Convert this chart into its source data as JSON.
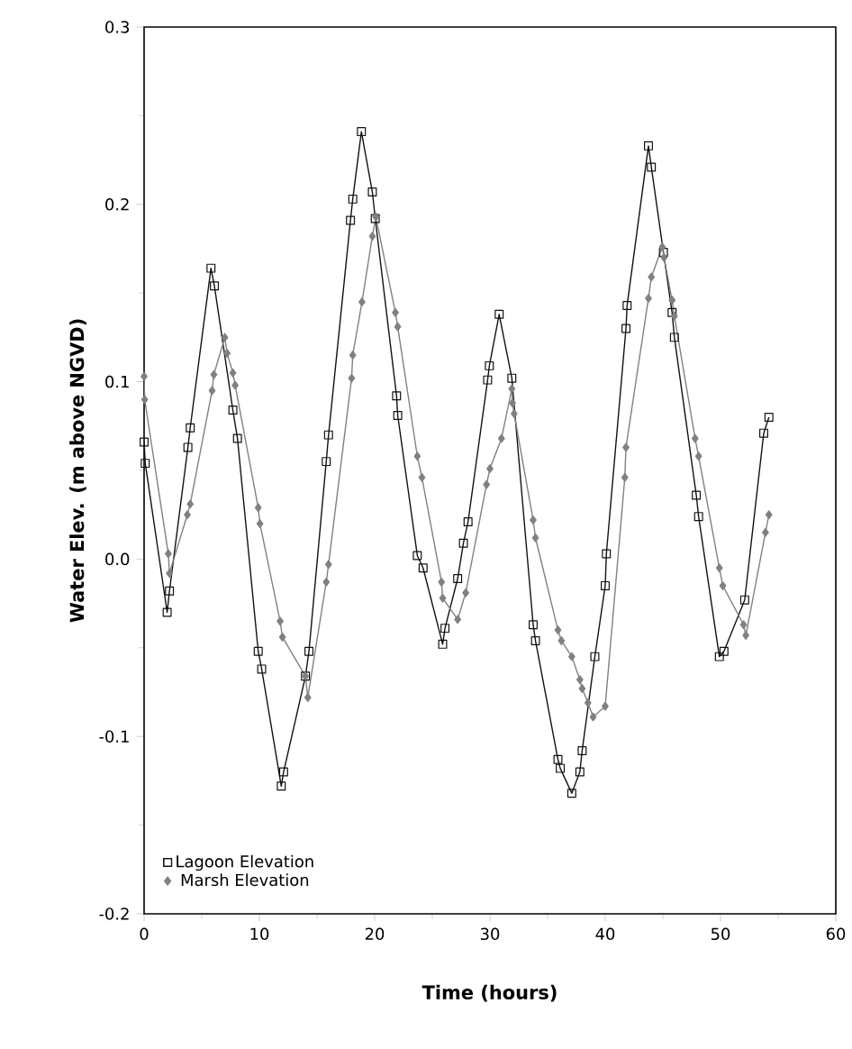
{
  "chart_data": {
    "type": "line",
    "xlabel": "Time (hours)",
    "ylabel": "Water Elev. (m above NGVD)",
    "xlim": [
      0,
      60
    ],
    "ylim": [
      -0.2,
      0.3
    ],
    "xticks": [
      0,
      10,
      20,
      30,
      40,
      50,
      60
    ],
    "yticks": [
      {
        "value": -0.2,
        "label": "-0.2"
      },
      {
        "value": -0.1,
        "label": "-0.1"
      },
      {
        "value": 0,
        "label": "0.0"
      },
      {
        "value": 0.1,
        "label": "0.1"
      },
      {
        "value": 0.2,
        "label": "0.2"
      },
      {
        "value": 0.3,
        "label": "0.3"
      }
    ],
    "legend": "bottom left",
    "line_style": "solid",
    "grid": false,
    "series": [
      {
        "name": "Lagoon Elevation",
        "color": "#111111",
        "marker": "square",
        "x": [
          0,
          0.1,
          2.0,
          2.2,
          3.8,
          4.0,
          5.8,
          6.1,
          7.7,
          8.1,
          9.9,
          10.2,
          11.9,
          12.1,
          14.0,
          14.3,
          15.8,
          16.0,
          17.9,
          18.1,
          18.85,
          19.8,
          20.05,
          21.9,
          22.0,
          23.7,
          24.2,
          25.9,
          26.1,
          27.2,
          27.7,
          28.1,
          29.8,
          29.95,
          30.8,
          31.9,
          33.75,
          33.95,
          35.9,
          36.1,
          37.1,
          37.8,
          38.0,
          39.1,
          40.0,
          40.1,
          41.8,
          41.9,
          43.75,
          44.0,
          45.05,
          45.8,
          46.0,
          47.9,
          48.1,
          49.9,
          50.3,
          52.1,
          53.75,
          54.2
        ],
        "values": [
          0.066,
          0.054,
          -0.03,
          -0.018,
          0.063,
          0.074,
          0.164,
          0.154,
          0.084,
          0.068,
          -0.052,
          -0.062,
          -0.128,
          -0.12,
          -0.066,
          -0.052,
          0.055,
          0.07,
          0.191,
          0.203,
          0.241,
          0.207,
          0.192,
          0.092,
          0.081,
          0.002,
          -0.005,
          -0.048,
          -0.039,
          -0.011,
          0.009,
          0.021,
          0.101,
          0.109,
          0.138,
          0.102,
          -0.037,
          -0.046,
          -0.113,
          -0.118,
          -0.132,
          -0.12,
          -0.108,
          -0.055,
          -0.015,
          0.003,
          0.13,
          0.143,
          0.233,
          0.221,
          0.173,
          0.139,
          0.125,
          0.036,
          0.024,
          -0.055,
          -0.052,
          -0.023,
          0.071,
          0.08
        ]
      },
      {
        "name": "Marsh Elevation",
        "color": "#808080",
        "marker": "diamond",
        "x": [
          0,
          0.05,
          2.1,
          2.2,
          3.75,
          4.0,
          5.9,
          6.05,
          7.0,
          7.2,
          7.7,
          7.9,
          9.9,
          10.05,
          11.8,
          12.0,
          14.0,
          14.2,
          15.8,
          16.0,
          18.0,
          18.1,
          18.9,
          19.8,
          20.1,
          21.8,
          22.0,
          23.7,
          24.1,
          25.8,
          25.9,
          27.2,
          27.9,
          29.7,
          30.0,
          31.0,
          31.9,
          31.95,
          32.1,
          33.75,
          33.95,
          35.9,
          36.2,
          37.1,
          37.8,
          38.0,
          38.5,
          38.95,
          40.0,
          41.7,
          41.8,
          43.75,
          44.0,
          44.95,
          45.1,
          45.8,
          46.0,
          47.8,
          48.1,
          49.9,
          50.2,
          52.0,
          52.2,
          53.9,
          54.2
        ],
        "values": [
          0.103,
          0.09,
          0.003,
          -0.008,
          0.025,
          0.031,
          0.095,
          0.104,
          0.125,
          0.116,
          0.105,
          0.098,
          0.029,
          0.02,
          -0.035,
          -0.044,
          -0.066,
          -0.078,
          -0.013,
          -0.003,
          0.102,
          0.115,
          0.145,
          0.182,
          0.193,
          0.139,
          0.131,
          0.058,
          0.046,
          -0.013,
          -0.022,
          -0.034,
          -0.019,
          0.042,
          0.051,
          0.068,
          0.096,
          0.088,
          0.082,
          0.022,
          0.012,
          -0.04,
          -0.046,
          -0.055,
          -0.068,
          -0.073,
          -0.081,
          -0.089,
          -0.083,
          0.046,
          0.063,
          0.147,
          0.159,
          0.176,
          0.17,
          0.146,
          0.137,
          0.068,
          0.058,
          -0.005,
          -0.015,
          -0.037,
          -0.043,
          0.015,
          0.025
        ]
      }
    ]
  }
}
